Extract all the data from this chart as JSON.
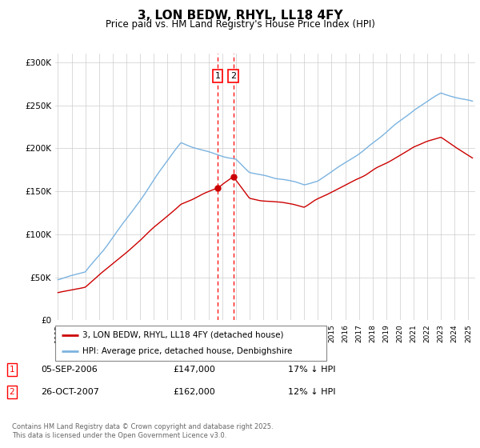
{
  "title": "3, LON BEDW, RHYL, LL18 4FY",
  "subtitle": "Price paid vs. HM Land Registry's House Price Index (HPI)",
  "hpi_color": "#7bb3e0",
  "price_color": "#cc0000",
  "sale1_date": "05-SEP-2006",
  "sale1_price": 147000,
  "sale1_hpi_diff": "17% ↓ HPI",
  "sale2_date": "26-OCT-2007",
  "sale2_price": 162000,
  "sale2_hpi_diff": "12% ↓ HPI",
  "legend_property": "3, LON BEDW, RHYL, LL18 4FY (detached house)",
  "legend_hpi": "HPI: Average price, detached house, Denbighshire",
  "footer": "Contains HM Land Registry data © Crown copyright and database right 2025.\nThis data is licensed under the Open Government Licence v3.0.",
  "ylim": [
    0,
    310000
  ],
  "yticks": [
    0,
    50000,
    100000,
    150000,
    200000,
    250000,
    300000
  ],
  "xlim_start": 1994.8,
  "xlim_end": 2025.5,
  "sale1_year": 2006.68,
  "sale2_year": 2007.82
}
